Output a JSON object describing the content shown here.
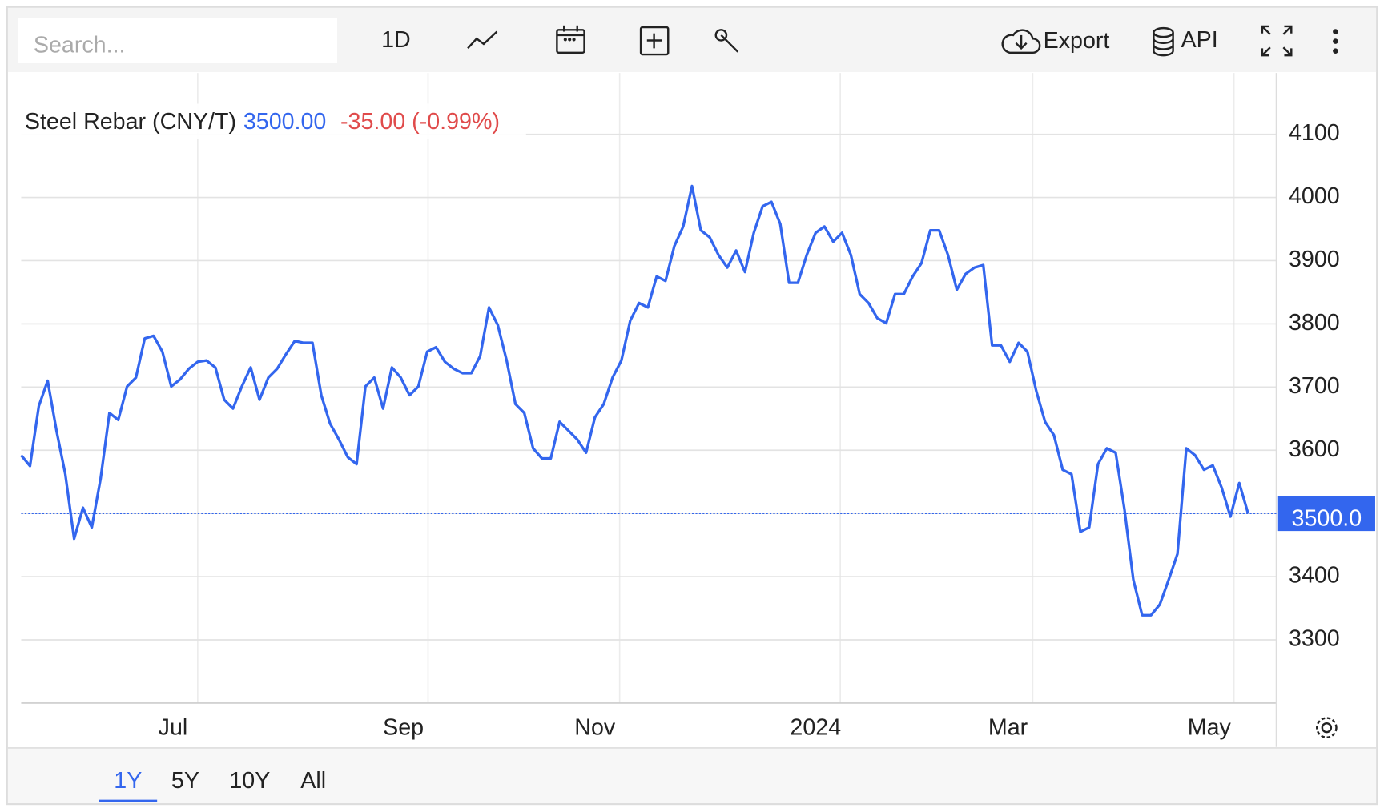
{
  "toolbar": {
    "search_placeholder": "Search...",
    "interval": "1D",
    "export": "Export",
    "api": "API"
  },
  "ranges": [
    "1Y",
    "5Y",
    "10Y",
    "All"
  ],
  "chart_data": {
    "type": "line",
    "title": "Steel Rebar (CNY/T)",
    "quote": {
      "price": {
        "value": 3500,
        "label": "3500.00"
      },
      "change": "-35.00 (-0.99%)"
    },
    "price_tag": {
      "value": 3500,
      "label": "3500.0"
    },
    "series": [
      {
        "name": "Steel Rebar (CNY/T)",
        "color": "#3366ee",
        "values": [
          3592,
          3575,
          3670,
          3710,
          3631,
          3562,
          3460,
          3509,
          3478,
          3555,
          3659,
          3648,
          3701,
          3715,
          3777,
          3781,
          3756,
          3701,
          3712,
          3729,
          3740,
          3742,
          3731,
          3680,
          3666,
          3701,
          3731,
          3680,
          3715,
          3729,
          3752,
          3773,
          3770,
          3770,
          3687,
          3642,
          3617,
          3589,
          3578,
          3701,
          3715,
          3666,
          3731,
          3715,
          3687,
          3701,
          3756,
          3763,
          3740,
          3729,
          3722,
          3722,
          3749,
          3826,
          3798,
          3742,
          3673,
          3659,
          3603,
          3587,
          3587,
          3645,
          3631,
          3617,
          3596,
          3652,
          3673,
          3715,
          3742,
          3805,
          3833,
          3826,
          3875,
          3868,
          3923,
          3954,
          4018,
          3948,
          3937,
          3909,
          3889,
          3916,
          3882,
          3944,
          3986,
          3993,
          3958,
          3865,
          3865,
          3909,
          3944,
          3954,
          3930,
          3944,
          3909,
          3847,
          3833,
          3809,
          3801,
          3847,
          3847,
          3875,
          3896,
          3948,
          3948,
          3909,
          3854,
          3879,
          3889,
          3893,
          3766,
          3766,
          3740,
          3770,
          3756,
          3694,
          3645,
          3624,
          3569,
          3562,
          3471,
          3478,
          3578,
          3603,
          3596,
          3506,
          3395,
          3339,
          3339,
          3356,
          3395,
          3436,
          3603,
          3592,
          3569,
          3576,
          3541,
          3495,
          3548,
          3500
        ]
      }
    ],
    "xlim": [
      0,
      142.2
    ],
    "xticks": [
      {
        "value": 20,
        "label": "Jul"
      },
      {
        "value": 46.1,
        "label": "Sep"
      },
      {
        "value": 67.8,
        "label": "Nov"
      },
      {
        "value": 92.8,
        "label": "2024"
      },
      {
        "value": 114.6,
        "label": "Mar"
      },
      {
        "value": 137.4,
        "label": "May"
      }
    ],
    "ylim": [
      3200,
      4197
    ],
    "yticks": [
      3300,
      3400,
      3500,
      3600,
      3700,
      3800,
      3900,
      4000,
      4100
    ],
    "grid": true
  }
}
